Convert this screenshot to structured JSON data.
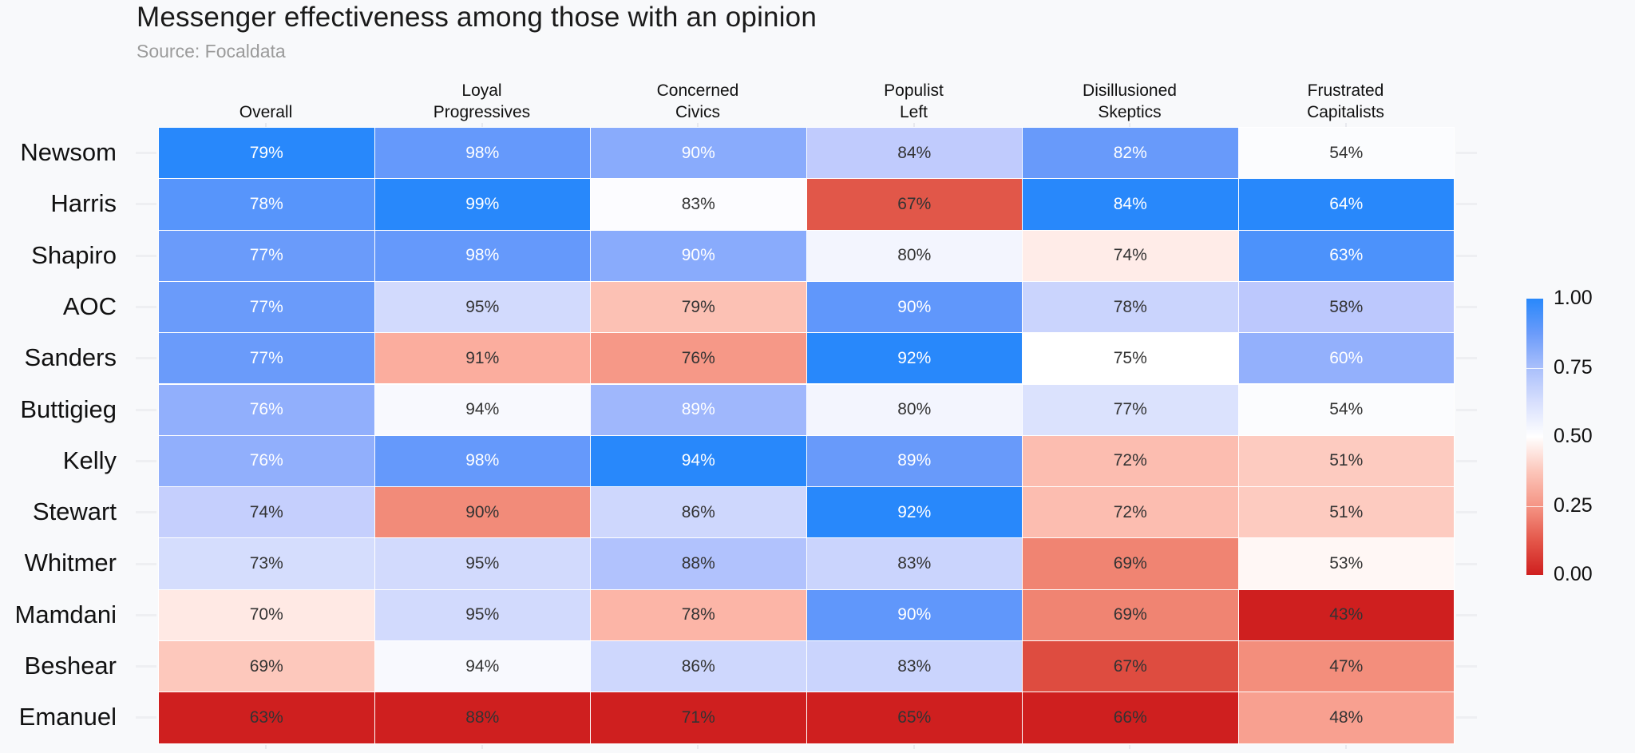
{
  "chart_data": {
    "type": "heatmap",
    "title": "Messenger effectiveness among those with an opinion",
    "subtitle": "Source: Focaldata",
    "color_scale": "per-column min-max normalized, diverging red-white-blue",
    "columns": [
      [
        "Overall"
      ],
      [
        "Loyal",
        "Progressives"
      ],
      [
        "Concerned",
        "Civics"
      ],
      [
        "Populist",
        "Left"
      ],
      [
        "Disillusioned",
        "Skeptics"
      ],
      [
        "Frustrated",
        "Capitalists"
      ]
    ],
    "rows": [
      "Newsom",
      "Harris",
      "Shapiro",
      "AOC",
      "Sanders",
      "Buttigieg",
      "Kelly",
      "Stewart",
      "Whitmer",
      "Mamdani",
      "Beshear",
      "Emanuel"
    ],
    "values": [
      [
        79,
        98,
        90,
        84,
        82,
        54
      ],
      [
        78,
        99,
        83,
        67,
        84,
        64
      ],
      [
        77,
        98,
        90,
        80,
        74,
        63
      ],
      [
        77,
        95,
        79,
        90,
        78,
        58
      ],
      [
        77,
        91,
        76,
        92,
        75,
        60
      ],
      [
        76,
        94,
        89,
        80,
        77,
        54
      ],
      [
        76,
        98,
        94,
        89,
        72,
        51
      ],
      [
        74,
        90,
        86,
        92,
        72,
        51
      ],
      [
        73,
        95,
        88,
        83,
        69,
        53
      ],
      [
        70,
        95,
        78,
        90,
        69,
        43
      ],
      [
        69,
        94,
        86,
        83,
        67,
        47
      ],
      [
        63,
        88,
        71,
        65,
        66,
        48
      ]
    ],
    "value_suffix": "%",
    "colorbar": {
      "ticks": [
        "1.00",
        "0.75",
        "0.50",
        "0.25",
        "0.00"
      ],
      "range": [
        0,
        1
      ],
      "low_color": "#CF1F1F",
      "mid_color": "#FFFFFF",
      "high_color": "#2888FB"
    }
  }
}
